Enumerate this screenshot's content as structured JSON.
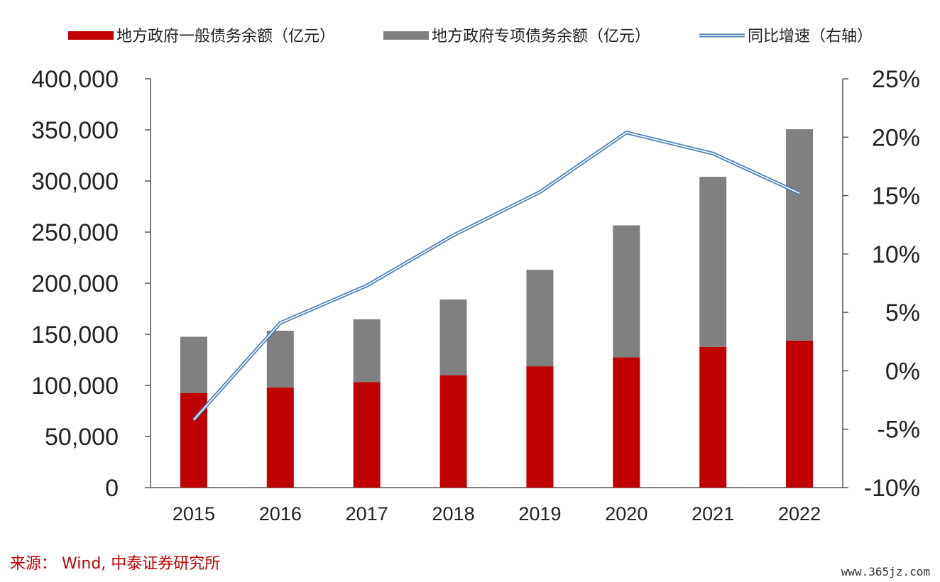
{
  "chart_data": {
    "type": "bar",
    "stacked": true,
    "categories": [
      "2015",
      "2016",
      "2017",
      "2018",
      "2019",
      "2020",
      "2021",
      "2022"
    ],
    "series": [
      {
        "name": "地方政府一般债务余额（亿元）",
        "kind": "bar",
        "axis": "left",
        "color": "#c00000",
        "values": [
          92619,
          97867,
          103322,
          109939,
          118694,
          127395,
          137709,
          143896
        ]
      },
      {
        "name": "地方政府专项债务余额（亿元）",
        "kind": "bar",
        "axis": "left",
        "color": "#808080",
        "values": [
          54949,
          55664,
          61385,
          74134,
          94378,
          129180,
          166367,
          206722
        ]
      },
      {
        "name": "同比增速（右轴）",
        "kind": "line",
        "axis": "right",
        "color": "#4a7fb5",
        "values": [
          -4.2,
          4.1,
          7.3,
          11.6,
          15.3,
          20.4,
          18.6,
          15.2
        ]
      }
    ],
    "y_left": {
      "ylim": [
        0,
        400000
      ],
      "ticks": [
        "0",
        "50,000",
        "100,000",
        "150,000",
        "200,000",
        "250,000",
        "300,000",
        "350,000",
        "400,000"
      ]
    },
    "y_right": {
      "ylim": [
        -10,
        25
      ],
      "ticks": [
        "-10%",
        "-5%",
        "0%",
        "5%",
        "10%",
        "15%",
        "20%",
        "25%"
      ]
    },
    "legend_position": "top",
    "grid": false
  },
  "source_text": "来源： Wind, 中泰证券研究所",
  "watermark_text": "www.365jz.com"
}
